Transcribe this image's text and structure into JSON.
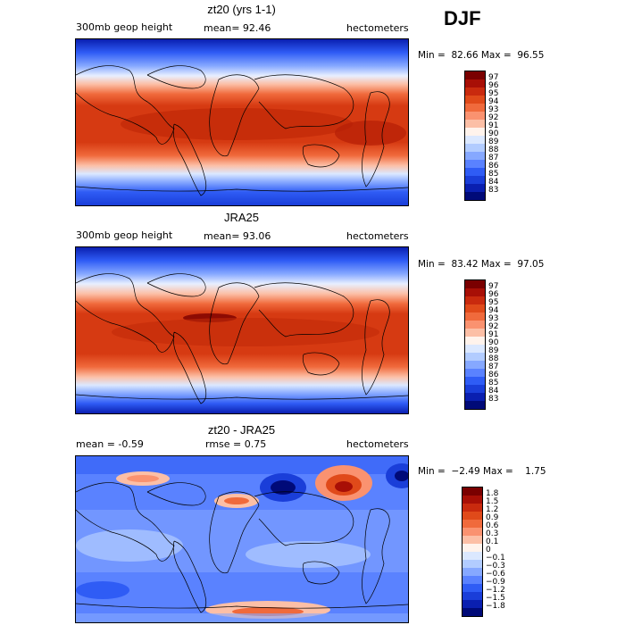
{
  "season": "DJF",
  "panels": [
    {
      "title": "zt20 (yrs 1-1)",
      "left_label": "300mb geop height",
      "center_label": "mean=  92.46",
      "right_label": "hectometers",
      "stats": "Min =  82.66 Max =  96.55",
      "colorbar": {
        "labels": [
          "97",
          "96",
          "95",
          "94",
          "93",
          "92",
          "91",
          "90",
          "89",
          "88",
          "87",
          "86",
          "85",
          "84",
          "83"
        ],
        "colors": [
          "#7a0000",
          "#a80f06",
          "#c92a0e",
          "#e04a1a",
          "#f06a3c",
          "#fa9270",
          "#fcbfa6",
          "#fff3ec",
          "#dbe8ff",
          "#b2ccff",
          "#86a8ff",
          "#5a82ff",
          "#2f5cf5",
          "#1a3ed9",
          "#0a1fb0",
          "#000a78"
        ]
      }
    },
    {
      "title": "JRA25",
      "left_label": "300mb geop height",
      "center_label": "mean=  93.06",
      "right_label": "hectometers",
      "stats": "Min =  83.42 Max =  97.05",
      "colorbar": {
        "labels": [
          "97",
          "96",
          "95",
          "94",
          "93",
          "92",
          "91",
          "90",
          "89",
          "88",
          "87",
          "86",
          "85",
          "84",
          "83"
        ],
        "colors": [
          "#7a0000",
          "#a80f06",
          "#c92a0e",
          "#e04a1a",
          "#f06a3c",
          "#fa9270",
          "#fcbfa6",
          "#fff3ec",
          "#dbe8ff",
          "#b2ccff",
          "#86a8ff",
          "#5a82ff",
          "#2f5cf5",
          "#1a3ed9",
          "#0a1fb0",
          "#000a78"
        ]
      }
    },
    {
      "title": "zt20 - JRA25",
      "left_label": "mean =   -0.59",
      "center_label": "rmse =    0.75",
      "right_label": "hectometers",
      "stats": "Min =  −2.49 Max =    1.75",
      "colorbar": {
        "labels": [
          "1.8",
          "1.5",
          "1.2",
          "0.9",
          "0.6",
          "0.3",
          "0.1",
          "0",
          "−0.1",
          "−0.3",
          "−0.6",
          "−0.9",
          "−1.2",
          "−1.5",
          "−1.8"
        ],
        "colors": [
          "#7a0000",
          "#a80f06",
          "#c92a0e",
          "#e04a1a",
          "#f06a3c",
          "#fa9270",
          "#fcbfa6",
          "#fff3ec",
          "#dbe8ff",
          "#b2ccff",
          "#86a8ff",
          "#5a82ff",
          "#2f5cf5",
          "#1a3ed9",
          "#0a1fb0",
          "#000a78"
        ]
      }
    }
  ]
}
